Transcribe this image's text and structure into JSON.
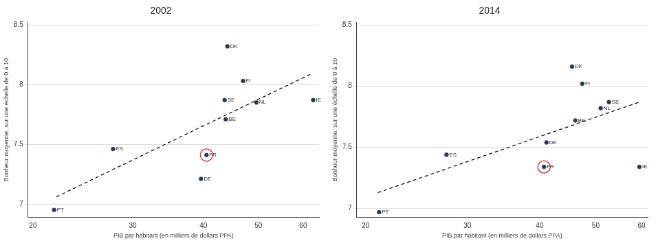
{
  "chart_data": [
    {
      "type": "scatter",
      "title": "2002",
      "x_label": "PIB par habitant (en milliers de dollars PPA)",
      "y_label": "Bonheur moyenne, sur une échelle de 0 à 10",
      "log": "x",
      "grid": "y",
      "xlim": [
        19.6,
        64
      ],
      "ylim": [
        6.89,
        8.52
      ],
      "xticks": [
        20,
        30,
        40,
        50,
        60
      ],
      "yticks": [
        7,
        7.5,
        8,
        8.5
      ],
      "series": [
        {
          "type": "scatter",
          "color": "#1f3b5c",
          "marker": "circle",
          "labels": [
            "PT",
            "ES",
            "FR",
            "DE",
            "BE",
            "SE",
            "DK",
            "FI",
            "NL",
            "IE"
          ],
          "x": [
            21.8,
            27.7,
            40.5,
            39.6,
            43.8,
            43.6,
            44.1,
            47.0,
            49.6,
            62.5
          ],
          "values": [
            6.95,
            7.46,
            7.41,
            7.21,
            7.71,
            7.87,
            8.32,
            8.03,
            7.85,
            7.87
          ]
        },
        {
          "type": "line",
          "color": "#000000",
          "line_style": "dashed",
          "x": [
            22,
            62
          ],
          "values": [
            7.06,
            8.09
          ]
        },
        {
          "type": "scatter",
          "color": "#e02020",
          "marker": "ring",
          "x": [
            40.5
          ],
          "values": [
            7.41
          ]
        }
      ]
    },
    {
      "type": "scatter",
      "title": "2014",
      "x_label": "PIB par habitant (en milliers de dollars PPA)",
      "y_label": "Bonheur moyenne, sur une échelle de 0 à 10",
      "log": "x",
      "grid": "y",
      "xlim": [
        19.3,
        61.5
      ],
      "ylim": [
        6.93,
        8.52
      ],
      "xticks": [
        20,
        30,
        40,
        50,
        60
      ],
      "yticks": [
        7,
        7.5,
        8,
        8.5
      ],
      "series": [
        {
          "type": "scatter",
          "color": "#1f3b5c",
          "marker": "circle",
          "labels": [
            "PT",
            "ES",
            "FR",
            "DE",
            "BE",
            "DK",
            "FI",
            "NL",
            "SE",
            "IE"
          ],
          "x": [
            21.1,
            27.6,
            40.7,
            41.1,
            46.1,
            45.5,
            47.4,
            51.0,
            52.7,
            59.5
          ],
          "values": [
            6.97,
            7.44,
            7.34,
            7.54,
            7.72,
            8.16,
            8.02,
            7.82,
            7.87,
            7.34
          ]
        },
        {
          "type": "line",
          "color": "#000000",
          "line_style": "dashed",
          "x": [
            21,
            59.5
          ],
          "values": [
            7.13,
            7.87
          ]
        },
        {
          "type": "scatter",
          "color": "#e02020",
          "marker": "ring",
          "x": [
            40.7
          ],
          "values": [
            7.34
          ]
        }
      ]
    }
  ]
}
